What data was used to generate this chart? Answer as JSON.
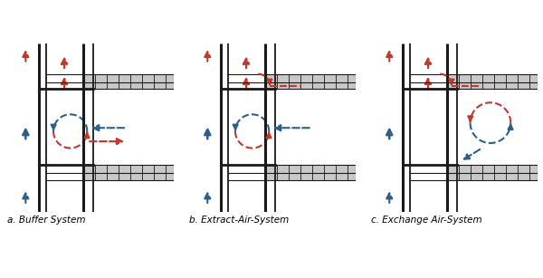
{
  "captions": [
    "a. Buffer System",
    "b. Extract-Air-System",
    "c. Exchange Air-System"
  ],
  "bg_color": "#ffffff",
  "wall_color": "#1a1a1a",
  "slab_color": "#c8c8c8",
  "slab_line_color": "#888888",
  "red_color": "#c0392b",
  "blue_color": "#2c5f8a",
  "fig_width": 6.0,
  "fig_height": 3.07,
  "dpi": 100
}
